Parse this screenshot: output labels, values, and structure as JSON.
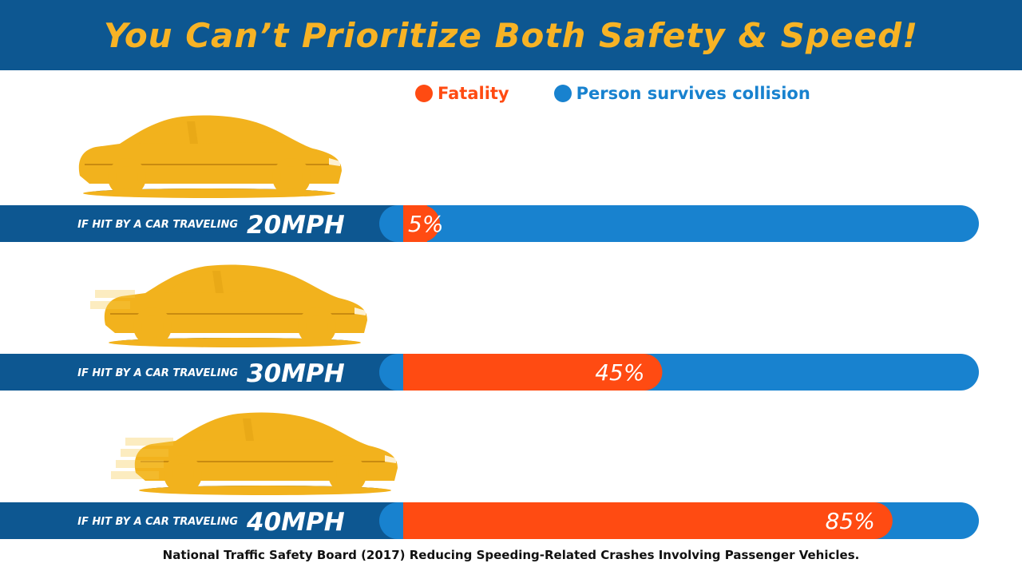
{
  "title": "You Can’t Prioritize Both Safety & Speed!",
  "legend": {
    "fatality_label": "Fatality",
    "survive_label": "Person survives collision"
  },
  "colors": {
    "fatality": "#ff4b12",
    "survive": "#1882cf",
    "navy": "#0d5791",
    "car_body": "#f2b21d",
    "car_body_light": "#f7c94a",
    "car_shadow": "#0d4677",
    "title": "#f7b325"
  },
  "chart_data": {
    "type": "bar",
    "categories": [
      "20MPH",
      "30MPH",
      "40MPH"
    ],
    "row_prefix": "IF HIT BY A CAR TRAVELING",
    "series": [
      {
        "name": "Fatality",
        "values": [
          5,
          45,
          85
        ],
        "labels": [
          "5%",
          "45%",
          "85%"
        ]
      },
      {
        "name": "Person survives collision",
        "values": [
          95,
          55,
          15
        ]
      }
    ],
    "people_per_row": 10,
    "ylim": [
      0,
      100
    ]
  },
  "source_note": "National Traffic Safety Board (2017) Reducing Speeding-Related Crashes Involving Passenger Vehicles."
}
